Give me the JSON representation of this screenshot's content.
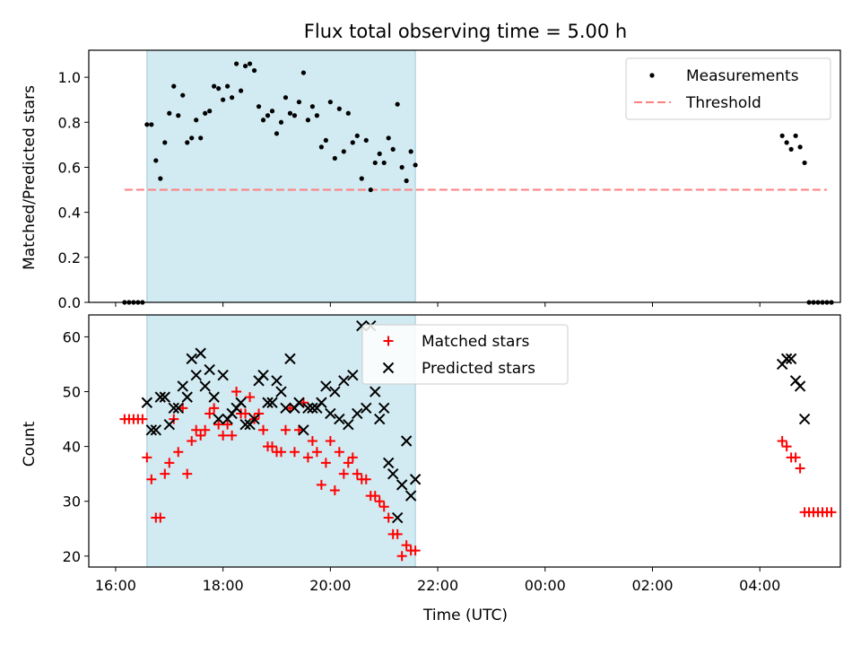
{
  "title": "Flux total observing time = 5.00 h",
  "colors": {
    "background": "#ffffff",
    "observing_window": "#add8e6",
    "measurements": "#000000",
    "threshold": "#ff7f7f",
    "matched": "#ff0000",
    "predicted": "#000000"
  },
  "x_tick_labels": [
    "16:00",
    "18:00",
    "20:00",
    "22:00",
    "00:00",
    "02:00",
    "04:00"
  ],
  "xlabel": "Time (UTC)",
  "chart_data": [
    {
      "type": "scatter",
      "ylabel": "Matched/Predicted stars",
      "x_unit": "hours since 16:00 UTC",
      "xlim": [
        -0.5,
        13.5
      ],
      "ylim": [
        0,
        1.12
      ],
      "y_ticks": [
        "0.0",
        "0.2",
        "0.4",
        "0.6",
        "0.8",
        "1.0"
      ],
      "observing_window": [
        "16:35",
        "21:35"
      ],
      "legend": {
        "placement": "upper right",
        "entries": [
          "Measurements",
          "Threshold"
        ]
      },
      "threshold": {
        "name": "Threshold",
        "y": 0.5,
        "x_range": [
          "16:10",
          "05:15"
        ]
      },
      "series": [
        {
          "name": "Measurements",
          "points": [
            [
              "16:10",
              0
            ],
            [
              "16:15",
              0
            ],
            [
              "16:20",
              0
            ],
            [
              "16:25",
              0
            ],
            [
              "16:30",
              0
            ],
            [
              "16:35",
              0.79
            ],
            [
              "16:40",
              0.79
            ],
            [
              "16:45",
              0.63
            ],
            [
              "16:50",
              0.55
            ],
            [
              "16:55",
              0.71
            ],
            [
              "17:00",
              0.84
            ],
            [
              "17:05",
              0.96
            ],
            [
              "17:10",
              0.83
            ],
            [
              "17:15",
              0.92
            ],
            [
              "17:20",
              0.71
            ],
            [
              "17:25",
              0.73
            ],
            [
              "17:30",
              0.81
            ],
            [
              "17:35",
              0.73
            ],
            [
              "17:40",
              0.84
            ],
            [
              "17:45",
              0.85
            ],
            [
              "17:50",
              0.96
            ],
            [
              "17:55",
              0.95
            ],
            [
              "18:00",
              0.9
            ],
            [
              "18:05",
              0.96
            ],
            [
              "18:10",
              0.91
            ],
            [
              "18:15",
              1.06
            ],
            [
              "18:20",
              0.94
            ],
            [
              "18:25",
              1.05
            ],
            [
              "18:30",
              1.06
            ],
            [
              "18:35",
              1.03
            ],
            [
              "18:40",
              0.87
            ],
            [
              "18:45",
              0.81
            ],
            [
              "18:50",
              0.83
            ],
            [
              "18:55",
              0.85
            ],
            [
              "19:00",
              0.75
            ],
            [
              "19:05",
              0.8
            ],
            [
              "19:10",
              0.91
            ],
            [
              "19:15",
              0.84
            ],
            [
              "19:20",
              0.83
            ],
            [
              "19:25",
              0.89
            ],
            [
              "19:30",
              1.02
            ],
            [
              "19:35",
              0.81
            ],
            [
              "19:40",
              0.87
            ],
            [
              "19:45",
              0.83
            ],
            [
              "19:50",
              0.69
            ],
            [
              "19:55",
              0.72
            ],
            [
              "20:00",
              0.89
            ],
            [
              "20:05",
              0.64
            ],
            [
              "20:10",
              0.86
            ],
            [
              "20:15",
              0.67
            ],
            [
              "20:20",
              0.84
            ],
            [
              "20:25",
              0.71
            ],
            [
              "20:30",
              0.74
            ],
            [
              "20:35",
              0.55
            ],
            [
              "20:40",
              0.72
            ],
            [
              "20:45",
              0.5
            ],
            [
              "20:50",
              0.62
            ],
            [
              "20:55",
              0.66
            ],
            [
              "21:00",
              0.62
            ],
            [
              "21:05",
              0.73
            ],
            [
              "21:10",
              0.68
            ],
            [
              "21:15",
              0.88
            ],
            [
              "21:20",
              0.6
            ],
            [
              "21:25",
              0.54
            ],
            [
              "21:30",
              0.67
            ],
            [
              "21:35",
              0.61
            ],
            [
              "04:25",
              0.74
            ],
            [
              "04:30",
              0.71
            ],
            [
              "04:35",
              0.68
            ],
            [
              "04:40",
              0.74
            ],
            [
              "04:45",
              0.69
            ],
            [
              "04:50",
              0.62
            ],
            [
              "04:55",
              0
            ],
            [
              "05:00",
              0
            ],
            [
              "05:05",
              0
            ],
            [
              "05:10",
              0
            ],
            [
              "05:15",
              0
            ],
            [
              "05:20",
              0
            ]
          ]
        }
      ]
    },
    {
      "type": "scatter",
      "ylabel": "Count",
      "x_unit": "hours since 16:00 UTC",
      "xlim": [
        -0.5,
        13.5
      ],
      "ylim": [
        18,
        64
      ],
      "y_ticks": [
        "20",
        "30",
        "40",
        "50",
        "60"
      ],
      "observing_window": [
        "16:35",
        "21:35"
      ],
      "legend": {
        "placement": "upper center",
        "entries": [
          "Matched stars",
          "Predicted stars"
        ]
      },
      "series": [
        {
          "name": "Matched stars",
          "marker": "+",
          "points": [
            [
              "16:10",
              45
            ],
            [
              "16:15",
              45
            ],
            [
              "16:20",
              45
            ],
            [
              "16:25",
              45
            ],
            [
              "16:30",
              45
            ],
            [
              "16:35",
              38
            ],
            [
              "16:40",
              34
            ],
            [
              "16:45",
              27
            ],
            [
              "16:50",
              27
            ],
            [
              "16:55",
              35
            ],
            [
              "17:00",
              37
            ],
            [
              "17:05",
              45
            ],
            [
              "17:10",
              39
            ],
            [
              "17:15",
              47
            ],
            [
              "17:20",
              35
            ],
            [
              "17:25",
              41
            ],
            [
              "17:30",
              43
            ],
            [
              "17:35",
              42
            ],
            [
              "17:40",
              43
            ],
            [
              "17:45",
              46
            ],
            [
              "17:50",
              47
            ],
            [
              "17:55",
              44
            ],
            [
              "18:00",
              42
            ],
            [
              "18:05",
              44
            ],
            [
              "18:10",
              42
            ],
            [
              "18:15",
              50
            ],
            [
              "18:20",
              46
            ],
            [
              "18:25",
              46
            ],
            [
              "18:30",
              49
            ],
            [
              "18:35",
              45
            ],
            [
              "18:40",
              46
            ],
            [
              "18:45",
              43
            ],
            [
              "18:50",
              40
            ],
            [
              "18:55",
              40
            ],
            [
              "19:00",
              39
            ],
            [
              "19:05",
              39
            ],
            [
              "19:10",
              43
            ],
            [
              "19:15",
              47
            ],
            [
              "19:20",
              39
            ],
            [
              "19:25",
              43
            ],
            [
              "19:30",
              48
            ],
            [
              "19:35",
              38
            ],
            [
              "19:40",
              41
            ],
            [
              "19:45",
              39
            ],
            [
              "19:50",
              33
            ],
            [
              "19:55",
              37
            ],
            [
              "20:00",
              41
            ],
            [
              "20:05",
              32
            ],
            [
              "20:10",
              39
            ],
            [
              "20:15",
              35
            ],
            [
              "20:20",
              37
            ],
            [
              "20:25",
              38
            ],
            [
              "20:30",
              35
            ],
            [
              "20:35",
              34
            ],
            [
              "20:40",
              34
            ],
            [
              "20:45",
              31
            ],
            [
              "20:50",
              31
            ],
            [
              "20:55",
              30
            ],
            [
              "21:00",
              29
            ],
            [
              "21:05",
              27
            ],
            [
              "21:10",
              24
            ],
            [
              "21:15",
              24
            ],
            [
              "21:20",
              20
            ],
            [
              "21:25",
              22
            ],
            [
              "21:30",
              21
            ],
            [
              "21:35",
              21
            ],
            [
              "04:25",
              41
            ],
            [
              "04:30",
              40
            ],
            [
              "04:35",
              38
            ],
            [
              "04:40",
              38
            ],
            [
              "04:45",
              36
            ],
            [
              "04:50",
              28
            ],
            [
              "04:55",
              28
            ],
            [
              "05:00",
              28
            ],
            [
              "05:05",
              28
            ],
            [
              "05:10",
              28
            ],
            [
              "05:15",
              28
            ],
            [
              "05:20",
              28
            ]
          ]
        },
        {
          "name": "Predicted stars",
          "marker": "x",
          "points": [
            [
              "16:35",
              48
            ],
            [
              "16:40",
              43
            ],
            [
              "16:45",
              43
            ],
            [
              "16:50",
              49
            ],
            [
              "16:55",
              49
            ],
            [
              "17:00",
              44
            ],
            [
              "17:05",
              47
            ],
            [
              "17:10",
              47
            ],
            [
              "17:15",
              51
            ],
            [
              "17:20",
              49
            ],
            [
              "17:25",
              56
            ],
            [
              "17:30",
              53
            ],
            [
              "17:35",
              57
            ],
            [
              "17:40",
              51
            ],
            [
              "17:45",
              54
            ],
            [
              "17:50",
              49
            ],
            [
              "17:55",
              45
            ],
            [
              "18:00",
              53
            ],
            [
              "18:05",
              45
            ],
            [
              "18:10",
              46
            ],
            [
              "18:15",
              47
            ],
            [
              "18:20",
              48
            ],
            [
              "18:25",
              44
            ],
            [
              "18:30",
              44
            ],
            [
              "18:35",
              45
            ],
            [
              "18:40",
              52
            ],
            [
              "18:45",
              53
            ],
            [
              "18:50",
              48
            ],
            [
              "18:55",
              48
            ],
            [
              "19:00",
              52
            ],
            [
              "19:05",
              50
            ],
            [
              "19:10",
              47
            ],
            [
              "19:15",
              56
            ],
            [
              "19:20",
              47
            ],
            [
              "19:25",
              48
            ],
            [
              "19:30",
              43
            ],
            [
              "19:35",
              47
            ],
            [
              "19:40",
              47
            ],
            [
              "19:45",
              47
            ],
            [
              "19:50",
              48
            ],
            [
              "19:55",
              51
            ],
            [
              "20:00",
              46
            ],
            [
              "20:05",
              50
            ],
            [
              "20:10",
              45
            ],
            [
              "20:15",
              52
            ],
            [
              "20:20",
              44
            ],
            [
              "20:25",
              53
            ],
            [
              "20:30",
              46
            ],
            [
              "20:35",
              62
            ],
            [
              "20:40",
              47
            ],
            [
              "20:45",
              62
            ],
            [
              "20:50",
              50
            ],
            [
              "20:55",
              45
            ],
            [
              "21:00",
              47
            ],
            [
              "21:05",
              37
            ],
            [
              "21:10",
              35
            ],
            [
              "21:15",
              27
            ],
            [
              "21:20",
              33
            ],
            [
              "21:25",
              41
            ],
            [
              "21:30",
              31
            ],
            [
              "21:35",
              34
            ],
            [
              "04:25",
              55
            ],
            [
              "04:30",
              56
            ],
            [
              "04:35",
              56
            ],
            [
              "04:40",
              52
            ],
            [
              "04:45",
              51
            ],
            [
              "04:50",
              45
            ]
          ]
        }
      ]
    }
  ]
}
